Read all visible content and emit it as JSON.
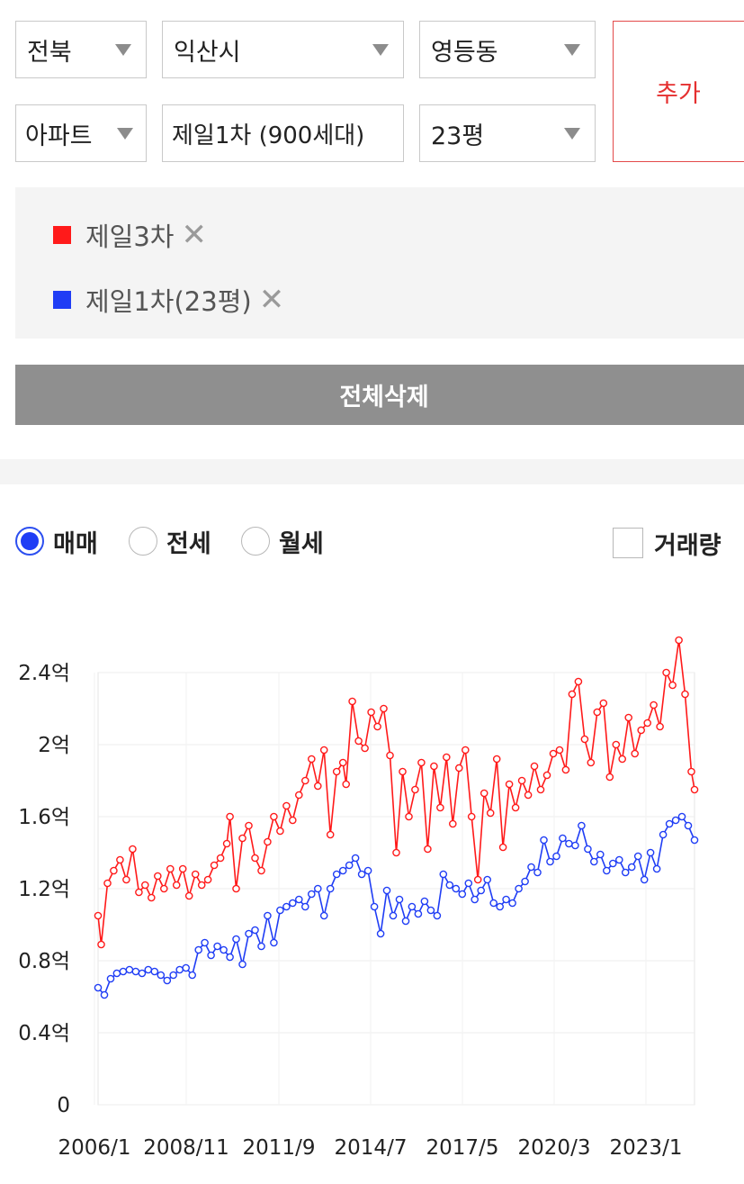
{
  "filters": {
    "region": "전북",
    "city": "익산시",
    "dong": "영등동",
    "type": "아파트",
    "complex": "제일1차 (900세대)",
    "size": "23평",
    "add_label": "추가"
  },
  "selected": [
    {
      "label": "제일3차",
      "color": "#ff1a1a"
    },
    {
      "label": "제일1차(23평)",
      "color": "#1f3df5"
    }
  ],
  "clear_all_label": "전체삭제",
  "trade_types": [
    {
      "label": "매매",
      "checked": true
    },
    {
      "label": "전세",
      "checked": false
    },
    {
      "label": "월세",
      "checked": false
    }
  ],
  "volume_label": "거래량",
  "volume_checked": false,
  "chart_data": {
    "type": "line",
    "x_tick_labels": [
      "2006/1",
      "2008/11",
      "2011/9",
      "2014/7",
      "2017/5",
      "2020/3",
      "2023/1"
    ],
    "y_tick_labels": [
      "0",
      "0.4억",
      "0.8억",
      "1.2억",
      "1.6억",
      "2억",
      "2.4억"
    ],
    "ylim": [
      0,
      2.4
    ],
    "xlim": [
      2006.0,
      2025.0
    ],
    "grid": true,
    "series": [
      {
        "name": "제일3차",
        "color": "#ff1a1a",
        "points": [
          [
            2006.0,
            1.05
          ],
          [
            2006.1,
            0.89
          ],
          [
            2006.3,
            1.23
          ],
          [
            2006.5,
            1.3
          ],
          [
            2006.7,
            1.36
          ],
          [
            2006.9,
            1.25
          ],
          [
            2007.1,
            1.42
          ],
          [
            2007.3,
            1.18
          ],
          [
            2007.5,
            1.22
          ],
          [
            2007.7,
            1.15
          ],
          [
            2007.9,
            1.27
          ],
          [
            2008.1,
            1.2
          ],
          [
            2008.3,
            1.31
          ],
          [
            2008.5,
            1.22
          ],
          [
            2008.7,
            1.31
          ],
          [
            2008.9,
            1.16
          ],
          [
            2009.1,
            1.28
          ],
          [
            2009.3,
            1.22
          ],
          [
            2009.5,
            1.25
          ],
          [
            2009.7,
            1.33
          ],
          [
            2009.9,
            1.37
          ],
          [
            2010.1,
            1.45
          ],
          [
            2010.2,
            1.6
          ],
          [
            2010.4,
            1.2
          ],
          [
            2010.6,
            1.48
          ],
          [
            2010.8,
            1.55
          ],
          [
            2011.0,
            1.37
          ],
          [
            2011.2,
            1.3
          ],
          [
            2011.4,
            1.46
          ],
          [
            2011.6,
            1.6
          ],
          [
            2011.8,
            1.52
          ],
          [
            2012.0,
            1.66
          ],
          [
            2012.2,
            1.58
          ],
          [
            2012.4,
            1.72
          ],
          [
            2012.6,
            1.8
          ],
          [
            2012.8,
            1.92
          ],
          [
            2013.0,
            1.77
          ],
          [
            2013.2,
            1.97
          ],
          [
            2013.4,
            1.5
          ],
          [
            2013.6,
            1.85
          ],
          [
            2013.8,
            1.9
          ],
          [
            2013.9,
            1.78
          ],
          [
            2014.1,
            2.24
          ],
          [
            2014.3,
            2.02
          ],
          [
            2014.5,
            1.98
          ],
          [
            2014.7,
            2.18
          ],
          [
            2014.9,
            2.1
          ],
          [
            2015.1,
            2.2
          ],
          [
            2015.3,
            1.94
          ],
          [
            2015.5,
            1.4
          ],
          [
            2015.7,
            1.85
          ],
          [
            2015.9,
            1.6
          ],
          [
            2016.1,
            1.75
          ],
          [
            2016.3,
            1.9
          ],
          [
            2016.5,
            1.42
          ],
          [
            2016.7,
            1.88
          ],
          [
            2016.9,
            1.65
          ],
          [
            2017.1,
            1.93
          ],
          [
            2017.3,
            1.56
          ],
          [
            2017.5,
            1.87
          ],
          [
            2017.7,
            1.97
          ],
          [
            2017.9,
            1.6
          ],
          [
            2018.1,
            1.25
          ],
          [
            2018.3,
            1.73
          ],
          [
            2018.5,
            1.62
          ],
          [
            2018.7,
            1.92
          ],
          [
            2018.9,
            1.43
          ],
          [
            2019.1,
            1.78
          ],
          [
            2019.3,
            1.65
          ],
          [
            2019.5,
            1.8
          ],
          [
            2019.7,
            1.72
          ],
          [
            2019.9,
            1.88
          ],
          [
            2020.1,
            1.75
          ],
          [
            2020.3,
            1.83
          ],
          [
            2020.5,
            1.95
          ],
          [
            2020.7,
            1.97
          ],
          [
            2020.9,
            1.86
          ],
          [
            2021.1,
            2.28
          ],
          [
            2021.3,
            2.35
          ],
          [
            2021.5,
            2.03
          ],
          [
            2021.7,
            1.9
          ],
          [
            2021.9,
            2.18
          ],
          [
            2022.1,
            2.23
          ],
          [
            2022.3,
            1.82
          ],
          [
            2022.5,
            2.0
          ],
          [
            2022.7,
            1.92
          ],
          [
            2022.9,
            2.15
          ],
          [
            2023.1,
            1.95
          ],
          [
            2023.3,
            2.08
          ],
          [
            2023.5,
            2.12
          ],
          [
            2023.7,
            2.22
          ],
          [
            2023.9,
            2.1
          ],
          [
            2024.1,
            2.4
          ],
          [
            2024.3,
            2.33
          ],
          [
            2024.5,
            2.58
          ],
          [
            2024.7,
            2.28
          ],
          [
            2024.9,
            1.85
          ],
          [
            2025.0,
            1.75
          ]
        ]
      },
      {
        "name": "제일1차(23평)",
        "color": "#1f3df5",
        "points": [
          [
            2006.0,
            0.65
          ],
          [
            2006.2,
            0.61
          ],
          [
            2006.4,
            0.7
          ],
          [
            2006.6,
            0.73
          ],
          [
            2006.8,
            0.74
          ],
          [
            2007.0,
            0.75
          ],
          [
            2007.2,
            0.74
          ],
          [
            2007.4,
            0.73
          ],
          [
            2007.6,
            0.75
          ],
          [
            2007.8,
            0.74
          ],
          [
            2008.0,
            0.72
          ],
          [
            2008.2,
            0.69
          ],
          [
            2008.4,
            0.72
          ],
          [
            2008.6,
            0.75
          ],
          [
            2008.8,
            0.76
          ],
          [
            2009.0,
            0.72
          ],
          [
            2009.2,
            0.86
          ],
          [
            2009.4,
            0.9
          ],
          [
            2009.6,
            0.83
          ],
          [
            2009.8,
            0.88
          ],
          [
            2010.0,
            0.86
          ],
          [
            2010.2,
            0.82
          ],
          [
            2010.4,
            0.92
          ],
          [
            2010.6,
            0.78
          ],
          [
            2010.8,
            0.95
          ],
          [
            2011.0,
            0.97
          ],
          [
            2011.2,
            0.88
          ],
          [
            2011.4,
            1.05
          ],
          [
            2011.6,
            0.9
          ],
          [
            2011.8,
            1.08
          ],
          [
            2012.0,
            1.1
          ],
          [
            2012.2,
            1.12
          ],
          [
            2012.4,
            1.14
          ],
          [
            2012.6,
            1.1
          ],
          [
            2012.8,
            1.17
          ],
          [
            2013.0,
            1.2
          ],
          [
            2013.2,
            1.05
          ],
          [
            2013.4,
            1.2
          ],
          [
            2013.6,
            1.28
          ],
          [
            2013.8,
            1.3
          ],
          [
            2014.0,
            1.33
          ],
          [
            2014.2,
            1.37
          ],
          [
            2014.4,
            1.28
          ],
          [
            2014.6,
            1.3
          ],
          [
            2014.8,
            1.1
          ],
          [
            2015.0,
            0.95
          ],
          [
            2015.2,
            1.19
          ],
          [
            2015.4,
            1.05
          ],
          [
            2015.6,
            1.14
          ],
          [
            2015.8,
            1.02
          ],
          [
            2016.0,
            1.1
          ],
          [
            2016.2,
            1.06
          ],
          [
            2016.4,
            1.13
          ],
          [
            2016.6,
            1.08
          ],
          [
            2016.8,
            1.05
          ],
          [
            2017.0,
            1.28
          ],
          [
            2017.2,
            1.22
          ],
          [
            2017.4,
            1.2
          ],
          [
            2017.6,
            1.17
          ],
          [
            2017.8,
            1.23
          ],
          [
            2018.0,
            1.14
          ],
          [
            2018.2,
            1.19
          ],
          [
            2018.4,
            1.25
          ],
          [
            2018.6,
            1.12
          ],
          [
            2018.8,
            1.1
          ],
          [
            2019.0,
            1.14
          ],
          [
            2019.2,
            1.12
          ],
          [
            2019.4,
            1.2
          ],
          [
            2019.6,
            1.24
          ],
          [
            2019.8,
            1.32
          ],
          [
            2020.0,
            1.29
          ],
          [
            2020.2,
            1.47
          ],
          [
            2020.4,
            1.35
          ],
          [
            2020.6,
            1.38
          ],
          [
            2020.8,
            1.48
          ],
          [
            2021.0,
            1.45
          ],
          [
            2021.2,
            1.44
          ],
          [
            2021.4,
            1.55
          ],
          [
            2021.6,
            1.42
          ],
          [
            2021.8,
            1.35
          ],
          [
            2022.0,
            1.39
          ],
          [
            2022.2,
            1.3
          ],
          [
            2022.4,
            1.34
          ],
          [
            2022.6,
            1.36
          ],
          [
            2022.8,
            1.29
          ],
          [
            2023.0,
            1.32
          ],
          [
            2023.2,
            1.38
          ],
          [
            2023.4,
            1.25
          ],
          [
            2023.6,
            1.4
          ],
          [
            2023.8,
            1.31
          ],
          [
            2024.0,
            1.5
          ],
          [
            2024.2,
            1.56
          ],
          [
            2024.4,
            1.58
          ],
          [
            2024.6,
            1.6
          ],
          [
            2024.8,
            1.55
          ],
          [
            2025.0,
            1.47
          ]
        ]
      }
    ]
  }
}
